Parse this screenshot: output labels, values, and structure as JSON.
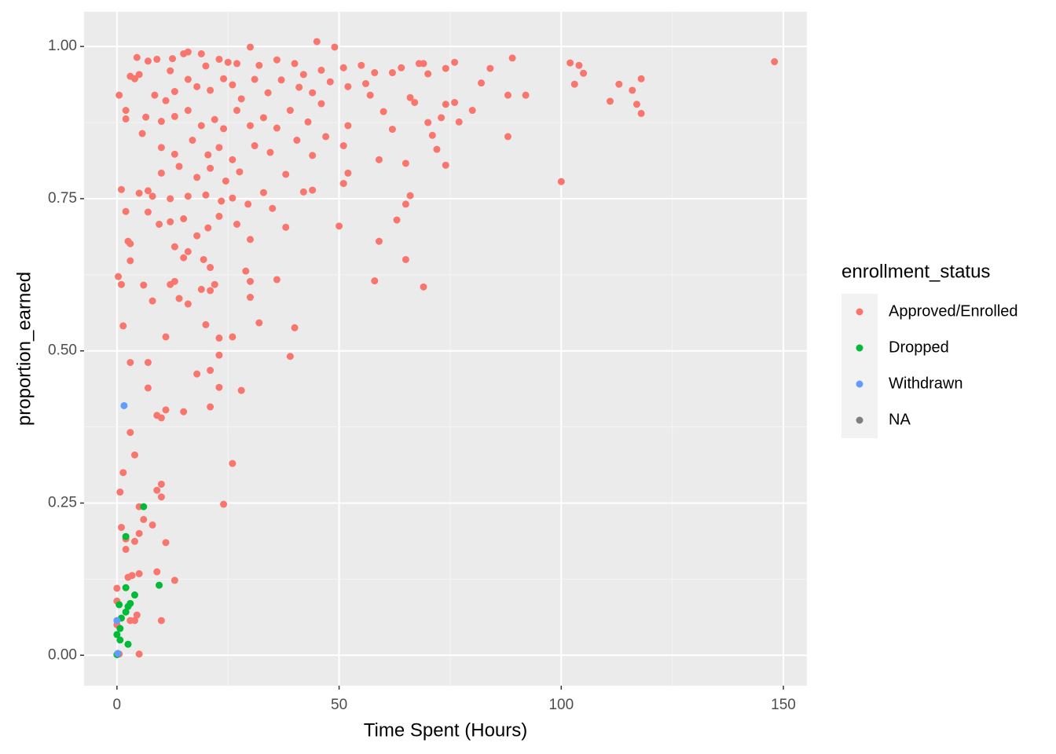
{
  "chart_data": {
    "type": "scatter",
    "x_label": "Time Spent (Hours)",
    "y_label": "proportion_earned",
    "xlim": [
      -7.4,
      155.3
    ],
    "ylim": [
      -0.05,
      1.057
    ],
    "xticks": [
      0,
      50,
      100,
      150
    ],
    "yticks": [
      {
        "value": 0,
        "label": "0.00"
      },
      {
        "value": 0.25,
        "label": "0.25"
      },
      {
        "value": 0.5,
        "label": "0.50"
      },
      {
        "value": 0.75,
        "label": "0.75"
      },
      {
        "value": 1,
        "label": "1.00"
      }
    ],
    "grid": true,
    "minor_grid": true,
    "legend_title": "enrollment_status",
    "legend_position": "right",
    "series": [
      {
        "name": "Approved/Enrolled",
        "color": "#F8766D",
        "x": [
          148,
          100,
          102,
          104,
          103,
          105,
          111,
          113,
          116,
          117,
          118,
          118,
          89,
          92,
          88,
          88,
          84,
          82,
          80,
          76,
          74,
          76,
          74,
          74,
          77,
          73,
          70,
          71,
          72,
          69,
          70,
          68,
          64,
          62,
          66,
          67,
          69,
          65,
          66,
          65,
          63,
          62,
          65,
          59,
          60,
          59,
          58,
          58,
          57,
          55,
          50,
          51,
          52,
          51,
          52,
          49,
          45,
          47,
          44,
          40,
          39,
          36,
          32,
          30,
          29,
          28,
          26,
          24,
          26,
          23,
          21,
          21,
          23,
          23,
          20,
          18,
          16,
          14,
          15,
          11,
          10,
          9,
          11,
          10,
          10,
          9,
          8,
          11,
          9,
          13,
          10,
          6,
          5,
          4,
          5,
          3,
          4,
          3,
          7,
          7,
          1.4,
          0.7,
          1,
          2,
          2,
          0.3,
          1,
          1.4,
          1,
          0.5,
          2,
          2,
          2,
          3,
          3,
          2.5,
          0,
          0,
          0,
          0.5,
          5,
          3,
          4,
          4.5,
          2.5,
          3.4,
          5,
          3,
          4,
          4.5,
          5,
          7,
          9,
          12,
          12.5,
          15,
          16,
          19,
          20,
          23,
          25,
          27,
          30,
          32,
          36,
          40,
          42,
          46,
          51,
          8.5,
          11,
          13,
          16,
          18,
          21,
          24,
          26,
          28,
          31,
          34,
          37,
          41,
          44,
          48,
          52,
          56,
          10,
          13,
          16,
          19,
          22,
          24,
          27,
          30,
          33,
          36,
          39,
          43,
          46,
          6.5,
          5.7,
          10,
          13,
          17,
          20.5,
          23,
          26,
          31,
          34.5,
          40.5,
          44,
          10,
          14,
          18,
          21,
          24.5,
          27.6,
          33,
          38,
          42,
          5,
          7,
          8,
          12,
          16,
          20,
          23.5,
          26,
          29.5,
          35,
          7,
          9.5,
          12,
          15,
          18,
          20.5,
          23,
          27,
          30,
          38,
          13,
          16,
          15,
          19.5,
          21,
          12,
          13,
          19,
          21,
          22,
          30,
          6,
          8
        ],
        "y": [
          0.975,
          0.778,
          0.973,
          0.969,
          0.938,
          0.956,
          0.91,
          0.938,
          0.928,
          0.905,
          0.947,
          0.89,
          0.981,
          0.92,
          0.92,
          0.852,
          0.964,
          0.94,
          0.895,
          0.974,
          0.964,
          0.908,
          0.905,
          0.805,
          0.876,
          0.883,
          0.875,
          0.854,
          0.831,
          0.972,
          0.955,
          0.972,
          0.965,
          0.957,
          0.916,
          0.908,
          0.605,
          0.65,
          0.755,
          0.741,
          0.715,
          0.864,
          0.808,
          0.814,
          0.893,
          0.68,
          0.615,
          0.957,
          0.92,
          0.969,
          0.705,
          0.775,
          0.792,
          0.837,
          0.87,
          0.999,
          1.008,
          0.852,
          0.764,
          0.538,
          0.491,
          0.617,
          0.546,
          0.588,
          0.631,
          0.435,
          0.315,
          0.248,
          0.523,
          0.44,
          0.468,
          0.408,
          0.521,
          0.493,
          0.543,
          0.462,
          0.577,
          0.586,
          0.4,
          0.403,
          0.39,
          0.394,
          0.523,
          0.281,
          0.26,
          0.271,
          0.214,
          0.185,
          0.137,
          0.123,
          0.057,
          0.223,
          0.2,
          0.187,
          0.244,
          0.366,
          0.329,
          0.481,
          0.481,
          0.439,
          0.3,
          0.268,
          0.21,
          0.174,
          0.191,
          0.622,
          0.609,
          0.541,
          0.765,
          0.92,
          0.895,
          0.881,
          0.729,
          0.676,
          0.648,
          0.68,
          0.11,
          0.089,
          0.05,
          0.002,
          0.002,
          0.057,
          0.057,
          0.066,
          0.128,
          0.131,
          0.134,
          0.951,
          0.947,
          0.982,
          0.954,
          0.976,
          0.979,
          0.96,
          0.98,
          0.988,
          0.991,
          0.988,
          0.968,
          0.979,
          0.974,
          0.972,
          0.999,
          0.969,
          0.978,
          0.972,
          0.954,
          0.961,
          0.965,
          0.92,
          0.911,
          0.926,
          0.946,
          0.934,
          0.928,
          0.947,
          0.937,
          0.914,
          0.946,
          0.924,
          0.945,
          0.933,
          0.924,
          0.942,
          0.934,
          0.939,
          0.877,
          0.885,
          0.895,
          0.87,
          0.88,
          0.865,
          0.895,
          0.87,
          0.883,
          0.866,
          0.895,
          0.876,
          0.906,
          0.884,
          0.857,
          0.834,
          0.823,
          0.846,
          0.822,
          0.834,
          0.814,
          0.837,
          0.826,
          0.846,
          0.821,
          0.792,
          0.803,
          0.785,
          0.8,
          0.779,
          0.794,
          0.76,
          0.79,
          0.761,
          0.759,
          0.763,
          0.754,
          0.75,
          0.754,
          0.756,
          0.746,
          0.751,
          0.741,
          0.734,
          0.728,
          0.708,
          0.712,
          0.717,
          0.689,
          0.702,
          0.721,
          0.708,
          0.683,
          0.703,
          0.671,
          0.663,
          0.653,
          0.65,
          0.637,
          0.609,
          0.614,
          0.601,
          0.599,
          0.609,
          0.614,
          0.608,
          0.582
        ]
      },
      {
        "name": "Dropped",
        "color": "#00BA38",
        "x": [
          6,
          2,
          2,
          9.5,
          4,
          3,
          0.5,
          2,
          1,
          0.7,
          2.5,
          0.7,
          0,
          2.5,
          0
        ],
        "y": [
          0.244,
          0.195,
          0.111,
          0.115,
          0.099,
          0.085,
          0.083,
          0.071,
          0.061,
          0.044,
          0.018,
          0.025,
          0.001,
          0.08,
          0.034
        ]
      },
      {
        "name": "Withdrawn",
        "color": "#619CFF",
        "x": [
          1.6,
          0,
          0.2
        ],
        "y": [
          0.41,
          0.057,
          0.003
        ]
      },
      {
        "name": "NA",
        "color": "#7F7F7F",
        "x": [],
        "y": []
      }
    ]
  }
}
